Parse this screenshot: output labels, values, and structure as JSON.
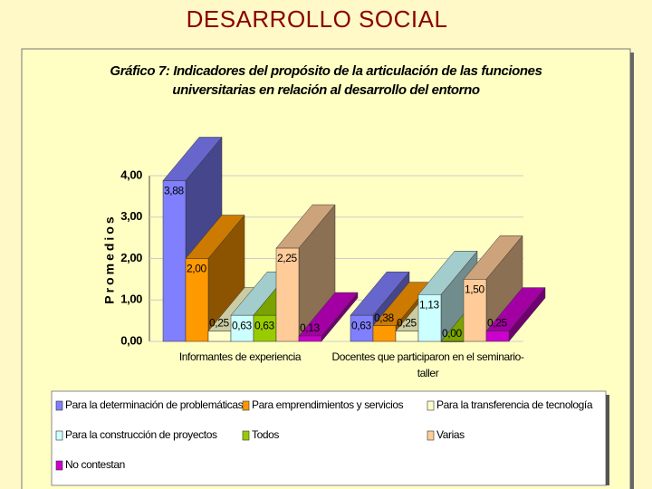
{
  "slide_title": "DESARROLLO SOCIAL",
  "chart_data": {
    "type": "bar3d",
    "title": "Gráfico 7:  Indicadores del propósito de la articulación de las funciones universitarias en relación al desarrollo del entorno",
    "y_label": "Promedios",
    "categories": [
      "Informantes de experiencia",
      "Docentes que participaron en el seminario-taller"
    ],
    "series": [
      {
        "name": "Para la determinación de problemáticas",
        "color": "#8080ff",
        "values": [
          3.88,
          0.63
        ],
        "value_labels": [
          "3,88",
          "0,63"
        ]
      },
      {
        "name": "Para emprendimientos y servicios",
        "color": "#ff9900",
        "values": [
          2.0,
          0.38
        ],
        "value_labels": [
          "2,00",
          "0,38"
        ]
      },
      {
        "name": "Para la transferencia de tecnología",
        "color": "#ffffcc",
        "values": [
          0.25,
          0.25
        ],
        "value_labels": [
          "0,25",
          "0,25"
        ]
      },
      {
        "name": "Para la construcción de proyectos",
        "color": "#ccffff",
        "values": [
          0.63,
          1.13
        ],
        "value_labels": [
          "0,63",
          "1,13"
        ]
      },
      {
        "name": "Todos",
        "color": "#99cc00",
        "values": [
          0.63,
          0.0
        ],
        "value_labels": [
          "0,63",
          "0,00"
        ]
      },
      {
        "name": "Varias",
        "color": "#ffcc99",
        "values": [
          2.25,
          1.5
        ],
        "value_labels": [
          "2,25",
          "1,50"
        ]
      },
      {
        "name": "No contestan",
        "color": "#cc00cc",
        "values": [
          0.13,
          0.25
        ],
        "value_labels": [
          "0,13",
          "0,25"
        ]
      }
    ],
    "ylim": [
      0,
      4
    ],
    "yticks": [
      {
        "value": 0,
        "label": "0,00"
      },
      {
        "value": 1,
        "label": "1,00"
      },
      {
        "value": 2,
        "label": "2,00"
      },
      {
        "value": 3,
        "label": "3,00"
      },
      {
        "value": 4,
        "label": "4,00"
      }
    ],
    "grid": true,
    "legend": "bottom"
  }
}
